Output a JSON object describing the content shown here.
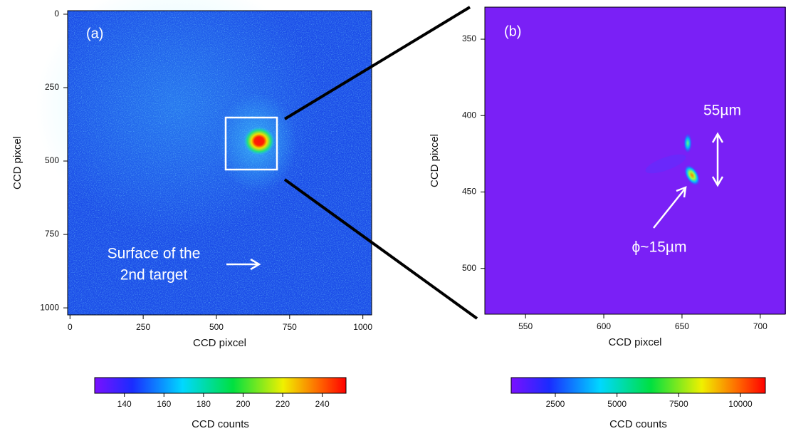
{
  "chart_data": [
    {
      "type": "heatmap",
      "panel_label": "(a)",
      "xlabel": "CCD pixcel",
      "ylabel": "CCD pixcel",
      "xlim": [
        -8,
        1030
      ],
      "xticks": [
        0,
        250,
        500,
        750,
        1000
      ],
      "ylim": [
        1024,
        -12
      ],
      "yticks": [
        0,
        250,
        500,
        750,
        1000
      ],
      "annotations": [
        "Surface of the",
        "2nd target"
      ],
      "colorbar": {
        "label": "CCD counts",
        "lim": [
          125,
          252
        ],
        "ticks": [
          140,
          160,
          180,
          200,
          220,
          240
        ]
      }
    },
    {
      "type": "heatmap",
      "panel_label": "(b)",
      "xlabel": "CCD pixcel",
      "ylabel": "CCD pixcel",
      "xlim": [
        524,
        716
      ],
      "xticks": [
        550,
        600,
        650,
        700
      ],
      "ylim": [
        530,
        329
      ],
      "yticks": [
        350,
        400,
        450,
        500
      ],
      "annotations": [
        "55µm",
        "ϕ~15µm"
      ],
      "colorbar": {
        "label": "CCD counts",
        "lim": [
          712,
          11010
        ],
        "ticks": [
          2500,
          5000,
          7500,
          10000
        ]
      }
    }
  ]
}
